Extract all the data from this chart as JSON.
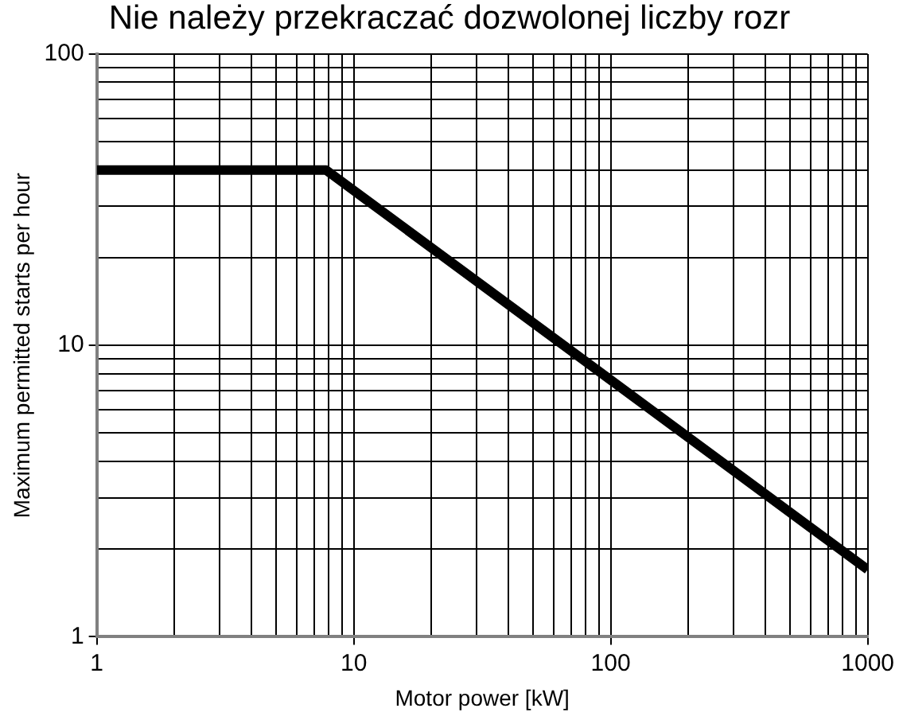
{
  "chart_data": {
    "type": "line",
    "title": "Nie należy przekraczać dozwolonej liczby rozr",
    "xlabel": "Motor power [kW]",
    "ylabel": "Maximum permitted starts per hour",
    "log": "xy",
    "grid": true,
    "legend": false,
    "marker": "none",
    "line_style": "solid",
    "x": [
      1,
      7.8,
      1000
    ],
    "series": [
      {
        "color": "#000000",
        "values": [
          40,
          40,
          1.7
        ]
      }
    ],
    "xlim": [
      1,
      1000
    ],
    "ylim": [
      1,
      100
    ],
    "xticks": [
      1,
      {
        "value": 2,
        "label": null
      },
      {
        "value": 3,
        "label": null
      },
      {
        "value": 4,
        "label": null
      },
      {
        "value": 5,
        "label": null
      },
      {
        "value": 6,
        "label": null
      },
      {
        "value": 7,
        "label": null
      },
      {
        "value": 8,
        "label": null
      },
      {
        "value": 9,
        "label": null
      },
      10,
      {
        "value": 20,
        "label": null
      },
      {
        "value": 30,
        "label": null
      },
      {
        "value": 40,
        "label": null
      },
      {
        "value": 50,
        "label": null
      },
      {
        "value": 60,
        "label": null
      },
      {
        "value": 70,
        "label": null
      },
      {
        "value": 80,
        "label": null
      },
      {
        "value": 90,
        "label": null
      },
      100,
      {
        "value": 200,
        "label": null
      },
      {
        "value": 300,
        "label": null
      },
      {
        "value": 400,
        "label": null
      },
      {
        "value": 500,
        "label": null
      },
      {
        "value": 600,
        "label": null
      },
      {
        "value": 700,
        "label": null
      },
      {
        "value": 800,
        "label": null
      },
      {
        "value": 900,
        "label": null
      },
      1000
    ],
    "yticks": [
      1,
      {
        "value": 2,
        "label": null
      },
      {
        "value": 3,
        "label": null
      },
      {
        "value": 4,
        "label": null
      },
      {
        "value": 5,
        "label": null
      },
      {
        "value": 6,
        "label": null
      },
      {
        "value": 7,
        "label": null
      },
      {
        "value": 8,
        "label": null
      },
      {
        "value": 9,
        "label": null
      },
      10,
      {
        "value": 20,
        "label": null
      },
      {
        "value": 30,
        "label": null
      },
      {
        "value": 40,
        "label": null
      },
      {
        "value": 50,
        "label": null
      },
      {
        "value": 60,
        "label": null
      },
      {
        "value": 70,
        "label": null
      },
      {
        "value": 80,
        "label": null
      },
      {
        "value": 90,
        "label": null
      },
      100
    ]
  }
}
